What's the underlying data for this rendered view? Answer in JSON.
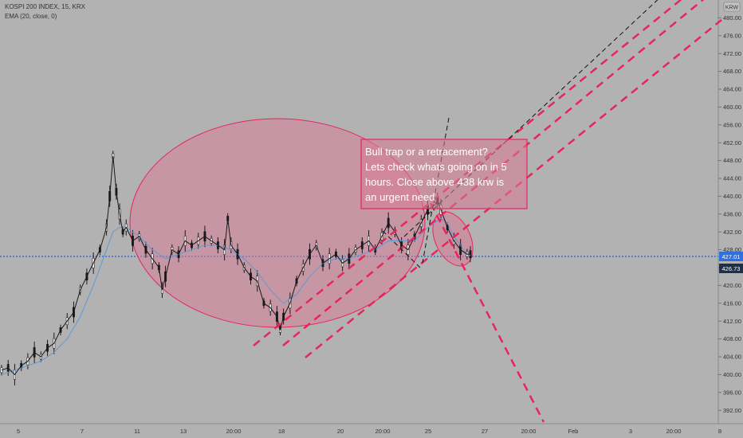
{
  "legend": {
    "symbol": "KOSPI 200 INDEX, 15, KRX",
    "indicator": "EMA (20, close, 0)"
  },
  "currency_badge": "KRW",
  "colors": {
    "background": "#b2b2b2",
    "candle": "#1a1a1a",
    "ema": "#5b9bd5",
    "annotation": "#e8245c",
    "zone_fill": "#d97a95",
    "price_line": "#2f6fe0",
    "trendline": "#111111"
  },
  "annotation": {
    "lines": [
      "Bull trap or a retracement?",
      "Lets check whats going on in 5",
      "hours. Close above 438 krw is",
      "an urgent need"
    ]
  },
  "chart_data": {
    "type": "candlestick",
    "ylim": [
      389,
      484
    ],
    "y_ticks": [
      "480.00",
      "476.00",
      "472.00",
      "468.00",
      "464.00",
      "460.00",
      "456.00",
      "452.00",
      "448.00",
      "444.00",
      "440.00",
      "436.00",
      "432.00",
      "428.00",
      "424.00",
      "420.00",
      "416.00",
      "412.00",
      "408.00",
      "404.00",
      "400.00",
      "396.00",
      "392.00"
    ],
    "x_ticks": [
      "5",
      "7",
      "11",
      "13",
      "20:00",
      "18",
      "20",
      "20:00",
      "25",
      "27",
      "20:00",
      "Feb",
      "3",
      "20:00",
      "8"
    ],
    "price_labels": {
      "last_close": "427.01",
      "ema": "426.73"
    },
    "series": [
      {
        "kind": "price",
        "points": [
          [
            0,
            401
          ],
          [
            2,
            401.5
          ],
          [
            4,
            400
          ],
          [
            6,
            402
          ],
          [
            8,
            403
          ],
          [
            10,
            405
          ],
          [
            12,
            404
          ],
          [
            14,
            406
          ],
          [
            16,
            407
          ],
          [
            18,
            410
          ],
          [
            20,
            412
          ],
          [
            22,
            414
          ],
          [
            24,
            419
          ],
          [
            26,
            422
          ],
          [
            28,
            425
          ],
          [
            30,
            428
          ],
          [
            32,
            433
          ],
          [
            33,
            440
          ],
          [
            34,
            449
          ],
          [
            35,
            441
          ],
          [
            36,
            436
          ],
          [
            37,
            432
          ],
          [
            38,
            433
          ],
          [
            40,
            430
          ],
          [
            42,
            431
          ],
          [
            44,
            428
          ],
          [
            46,
            426
          ],
          [
            48,
            424
          ],
          [
            49,
            419
          ],
          [
            50,
            422
          ],
          [
            52,
            428
          ],
          [
            54,
            427
          ],
          [
            56,
            430
          ],
          [
            58,
            429
          ],
          [
            60,
            430
          ],
          [
            62,
            431
          ],
          [
            64,
            430
          ],
          [
            66,
            429
          ],
          [
            68,
            428
          ],
          [
            69,
            435
          ],
          [
            70,
            429
          ],
          [
            72,
            427
          ],
          [
            74,
            424
          ],
          [
            76,
            422
          ],
          [
            78,
            421
          ],
          [
            80,
            416
          ],
          [
            82,
            415
          ],
          [
            84,
            413
          ],
          [
            85,
            410
          ],
          [
            86,
            413
          ],
          [
            88,
            416
          ],
          [
            90,
            421
          ],
          [
            92,
            424
          ],
          [
            94,
            427
          ],
          [
            96,
            429
          ],
          [
            98,
            425
          ],
          [
            100,
            426
          ],
          [
            102,
            427
          ],
          [
            104,
            425
          ],
          [
            106,
            426
          ],
          [
            108,
            428
          ],
          [
            110,
            429
          ],
          [
            112,
            430
          ],
          [
            114,
            428
          ],
          [
            116,
            431
          ],
          [
            118,
            434
          ],
          [
            120,
            432
          ],
          [
            122,
            429
          ],
          [
            124,
            428
          ],
          [
            126,
            431
          ],
          [
            128,
            434
          ],
          [
            130,
            437
          ],
          [
            132,
            438
          ],
          [
            133,
            439
          ],
          [
            134,
            437
          ],
          [
            136,
            433
          ],
          [
            138,
            430
          ],
          [
            140,
            428
          ],
          [
            142,
            427
          ],
          [
            143,
            427.01
          ]
        ]
      },
      {
        "kind": "ema",
        "points": [
          [
            0,
            400
          ],
          [
            4,
            401
          ],
          [
            8,
            402
          ],
          [
            12,
            403
          ],
          [
            16,
            405
          ],
          [
            20,
            408
          ],
          [
            24,
            413
          ],
          [
            28,
            420
          ],
          [
            30,
            424
          ],
          [
            32,
            428
          ],
          [
            34,
            432
          ],
          [
            36,
            433
          ],
          [
            38,
            433
          ],
          [
            42,
            431
          ],
          [
            46,
            428
          ],
          [
            50,
            426
          ],
          [
            54,
            427
          ],
          [
            58,
            428
          ],
          [
            62,
            429
          ],
          [
            66,
            429
          ],
          [
            70,
            428
          ],
          [
            74,
            426
          ],
          [
            78,
            423
          ],
          [
            82,
            419
          ],
          [
            86,
            416
          ],
          [
            90,
            418
          ],
          [
            94,
            422
          ],
          [
            98,
            425
          ],
          [
            102,
            426
          ],
          [
            106,
            426
          ],
          [
            110,
            427
          ],
          [
            114,
            428
          ],
          [
            118,
            430
          ],
          [
            122,
            430
          ],
          [
            126,
            430
          ],
          [
            130,
            433
          ],
          [
            134,
            435
          ],
          [
            136,
            434
          ],
          [
            138,
            431
          ],
          [
            140,
            429
          ],
          [
            142,
            427
          ],
          [
            143,
            426.73
          ]
        ]
      }
    ]
  }
}
